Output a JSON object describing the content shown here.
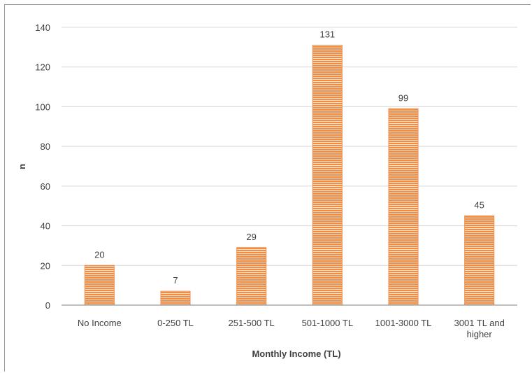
{
  "colors": {
    "bar": "#f08c44",
    "bar_stripe": "#fbe1cd",
    "grid": "#d9d9d9",
    "axis": "#7f7f7f",
    "text": "#404040"
  },
  "chart_data": {
    "type": "bar",
    "categories": [
      "No Income",
      "0-250 TL",
      "251-500 TL",
      "501-1000 TL",
      "1001-3000 TL",
      "3001 TL and higher"
    ],
    "values": [
      20,
      7,
      29,
      131,
      99,
      45
    ],
    "data_labels": [
      "20",
      "7",
      "29",
      "131",
      "99",
      "45"
    ],
    "xlabel": "Monthly Income (TL)",
    "ylabel": "n",
    "ylim": [
      0,
      140
    ],
    "yticks": [
      0,
      20,
      40,
      60,
      80,
      100,
      120,
      140
    ],
    "grid": true,
    "legend": "none"
  }
}
